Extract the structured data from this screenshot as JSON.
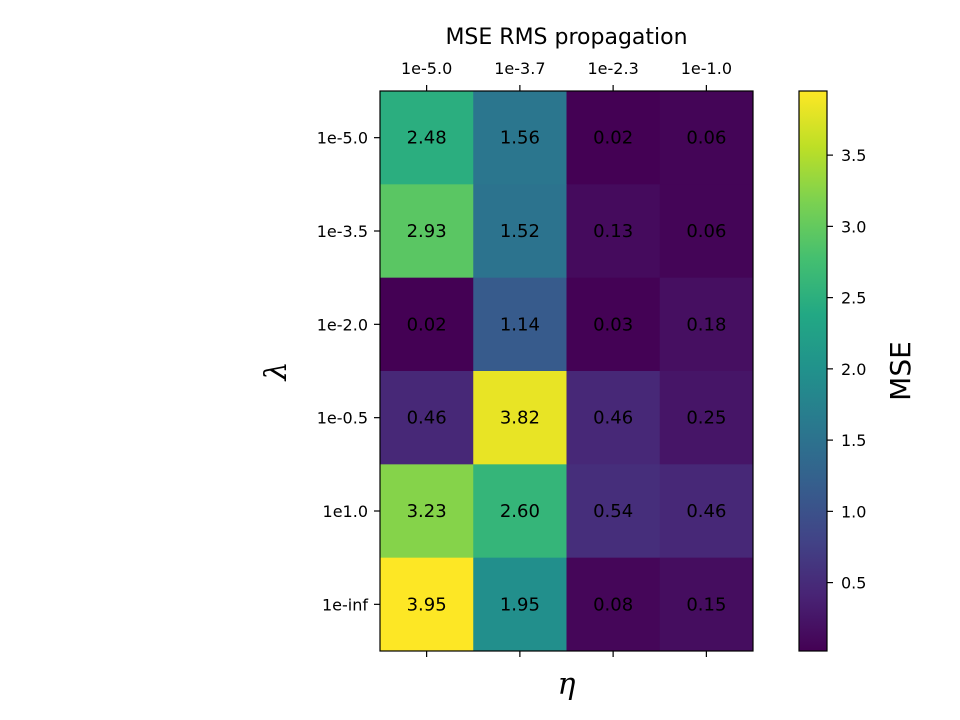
{
  "chart_data": {
    "type": "heatmap",
    "title": "MSE RMS propagation",
    "xlabel": "η",
    "ylabel": "λ",
    "x_categories": [
      "1e-5.0",
      "1e-3.7",
      "1e-2.3",
      "1e-1.0"
    ],
    "y_categories": [
      "1e-5.0",
      "1e-3.5",
      "1e-2.0",
      "1e-0.5",
      "1e1.0",
      "1e-inf"
    ],
    "values": [
      [
        2.48,
        1.56,
        0.02,
        0.06
      ],
      [
        2.93,
        1.52,
        0.13,
        0.06
      ],
      [
        0.02,
        1.14,
        0.03,
        0.18
      ],
      [
        0.46,
        3.82,
        0.46,
        0.25
      ],
      [
        3.23,
        2.6,
        0.54,
        0.46
      ],
      [
        3.95,
        1.95,
        0.08,
        0.15
      ]
    ],
    "value_labels": [
      [
        "2.48",
        "1.56",
        "0.02",
        "0.06"
      ],
      [
        "2.93",
        "1.52",
        "0.13",
        "0.06"
      ],
      [
        "0.02",
        "1.14",
        "0.03",
        "0.18"
      ],
      [
        "0.46",
        "3.82",
        "0.46",
        "0.25"
      ],
      [
        "3.23",
        "2.60",
        "0.54",
        "0.46"
      ],
      [
        "3.95",
        "1.95",
        "0.08",
        "0.15"
      ]
    ],
    "x_tick_position": "top",
    "colormap": "viridis",
    "colorbar": {
      "label": "MSE",
      "range": [
        0.02,
        3.95
      ],
      "ticks": [
        0.5,
        1.0,
        1.5,
        2.0,
        2.5,
        3.0,
        3.5
      ],
      "tick_labels": [
        "0.5",
        "1.0",
        "1.5",
        "2.0",
        "2.5",
        "3.0",
        "3.5"
      ]
    }
  }
}
